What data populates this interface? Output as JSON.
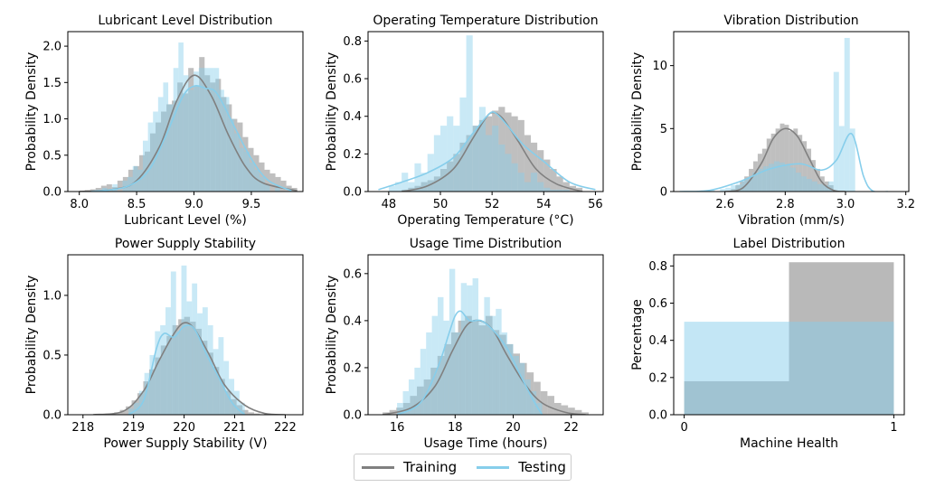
{
  "colors": {
    "training": "#808080",
    "testing": "#87CEEB",
    "axis": "#000000"
  },
  "legend": {
    "training_label": "Training",
    "testing_label": "Testing"
  },
  "chart_data": [
    {
      "type": "histogram+kde",
      "title": "Lubricant Level Distribution",
      "xlabel": "Lubricant Level (%)",
      "ylabel": "Probability Density",
      "xlim": [
        7.9,
        9.95
      ],
      "ylim": [
        0,
        2.2
      ],
      "xticks": [
        {
          "v": 8.0,
          "t": "8.0"
        },
        {
          "v": 8.5,
          "t": "8.5"
        },
        {
          "v": 9.0,
          "t": "9.0"
        },
        {
          "v": 9.5,
          "t": "9.5"
        }
      ],
      "yticks": [
        {
          "v": 0,
          "t": "0.0"
        },
        {
          "v": 0.5,
          "t": "0.5"
        },
        {
          "v": 1.0,
          "t": "1.0"
        },
        {
          "v": 1.5,
          "t": "1.5"
        },
        {
          "v": 2.0,
          "t": "2.0"
        }
      ],
      "train_hist": {
        "x0": 8.0,
        "x1": 9.9,
        "values": [
          0.01,
          0.02,
          0.03,
          0.05,
          0.08,
          0.1,
          0.06,
          0.15,
          0.2,
          0.3,
          0.35,
          0.5,
          0.55,
          0.8,
          0.95,
          1.1,
          1.2,
          1.25,
          1.5,
          1.35,
          1.7,
          1.45,
          1.85,
          1.6,
          1.5,
          1.55,
          1.3,
          1.2,
          1.0,
          0.95,
          0.75,
          0.6,
          0.5,
          0.4,
          0.3,
          0.25,
          0.2,
          0.15,
          0.08,
          0.05
        ]
      },
      "test_hist": {
        "x0": 8.2,
        "x1": 9.75,
        "values": [
          0.05,
          0,
          0.1,
          0,
          0.15,
          0.2,
          0.35,
          0.3,
          0.7,
          0.95,
          1.1,
          1.3,
          1.5,
          1.2,
          1.7,
          2.05,
          1.6,
          1.4,
          1.65,
          1.7,
          1.7,
          1.7,
          1.7,
          1.4,
          1.3,
          1.0,
          0.8,
          0.6,
          0.55,
          0.4,
          0.3,
          0.2,
          0.1,
          0,
          0.05
        ]
      },
      "train_kde": [
        [
          8.0,
          0
        ],
        [
          8.3,
          0.03
        ],
        [
          8.5,
          0.15
        ],
        [
          8.7,
          0.62
        ],
        [
          8.85,
          1.25
        ],
        [
          9.0,
          1.6
        ],
        [
          9.15,
          1.32
        ],
        [
          9.3,
          0.78
        ],
        [
          9.45,
          0.34
        ],
        [
          9.6,
          0.12
        ],
        [
          9.9,
          0.01
        ]
      ],
      "test_kde": [
        [
          8.1,
          0
        ],
        [
          8.4,
          0.06
        ],
        [
          8.6,
          0.28
        ],
        [
          8.75,
          0.75
        ],
        [
          8.9,
          1.3
        ],
        [
          9.0,
          1.45
        ],
        [
          9.1,
          1.42
        ],
        [
          9.2,
          1.35
        ],
        [
          9.35,
          0.9
        ],
        [
          9.5,
          0.45
        ],
        [
          9.65,
          0.15
        ],
        [
          9.85,
          0.01
        ]
      ]
    },
    {
      "type": "histogram+kde",
      "title": "Operating Temperature Distribution",
      "xlabel": "Operating Temperature (°C)",
      "ylabel": "Probability Density",
      "xlim": [
        47.2,
        56.3
      ],
      "ylim": [
        0,
        0.85
      ],
      "xticks": [
        {
          "v": 48,
          "t": "48"
        },
        {
          "v": 50,
          "t": "50"
        },
        {
          "v": 52,
          "t": "52"
        },
        {
          "v": 54,
          "t": "54"
        },
        {
          "v": 56,
          "t": "56"
        }
      ],
      "yticks": [
        {
          "v": 0,
          "t": "0.0"
        },
        {
          "v": 0.2,
          "t": "0.2"
        },
        {
          "v": 0.4,
          "t": "0.4"
        },
        {
          "v": 0.6,
          "t": "0.6"
        },
        {
          "v": 0.8,
          "t": "0.8"
        }
      ],
      "train_hist": {
        "x0": 48.5,
        "x1": 55.5,
        "values": [
          0.01,
          0.02,
          0.03,
          0.05,
          0.06,
          0.08,
          0.12,
          0.16,
          0.2,
          0.26,
          0.3,
          0.35,
          0.38,
          0.4,
          0.43,
          0.45,
          0.42,
          0.4,
          0.38,
          0.3,
          0.26,
          0.22,
          0.17,
          0.12,
          0.08,
          0.05,
          0.03,
          0.02
        ]
      },
      "test_hist": {
        "x0": 48,
        "x1": 55,
        "values": [
          0.03,
          0.05,
          0.1,
          0.05,
          0.15,
          0.1,
          0.2,
          0.3,
          0.35,
          0.4,
          0.35,
          0.5,
          0.83,
          0.35,
          0.45,
          0.3,
          0.35,
          0.25,
          0.2,
          0.15,
          0.1,
          0.05,
          0.1,
          0.05,
          0.02,
          0.01,
          0.01,
          0.01
        ]
      },
      "train_kde": [
        [
          48.5,
          0
        ],
        [
          49.5,
          0.03
        ],
        [
          50.5,
          0.12
        ],
        [
          51.2,
          0.27
        ],
        [
          51.7,
          0.38
        ],
        [
          52.0,
          0.42
        ],
        [
          52.4,
          0.39
        ],
        [
          53.0,
          0.27
        ],
        [
          53.7,
          0.12
        ],
        [
          54.5,
          0.04
        ],
        [
          55.5,
          0
        ]
      ],
      "test_kde": [
        [
          47.6,
          0.01
        ],
        [
          48.5,
          0.05
        ],
        [
          49.5,
          0.1
        ],
        [
          50.5,
          0.18
        ],
        [
          51.2,
          0.3
        ],
        [
          51.8,
          0.4
        ],
        [
          52.1,
          0.42
        ],
        [
          52.6,
          0.35
        ],
        [
          53.2,
          0.25
        ],
        [
          54.0,
          0.16
        ],
        [
          55.0,
          0.05
        ],
        [
          56.0,
          0.01
        ]
      ]
    },
    {
      "type": "histogram+kde",
      "title": "Vibration Distribution",
      "xlabel": "Vibration (mm/s)",
      "ylabel": "Probability Density",
      "xlim": [
        2.43,
        3.21
      ],
      "ylim": [
        0,
        12.7
      ],
      "xticks": [
        {
          "v": 2.6,
          "t": "2.6"
        },
        {
          "v": 2.8,
          "t": "2.8"
        },
        {
          "v": 3.0,
          "t": "3.0"
        },
        {
          "v": 3.2,
          "t": "3.2"
        }
      ],
      "yticks": [
        {
          "v": 0,
          "t": "0"
        },
        {
          "v": 5,
          "t": "5"
        },
        {
          "v": 10,
          "t": "10"
        }
      ],
      "train_hist": {
        "x0": 2.62,
        "x1": 2.96,
        "values": [
          0.2,
          0.5,
          0.8,
          1.2,
          1.8,
          2.4,
          3.0,
          3.4,
          4.2,
          4.6,
          5.0,
          5.4,
          5.3,
          4.8,
          5.0,
          4.5,
          4.0,
          3.4,
          2.5,
          1.8,
          1.2,
          0.8,
          0.5
        ]
      },
      "test_hist": {
        "x0": 2.53,
        "x1": 3.05,
        "values": [
          0.1,
          0.1,
          0,
          0.2,
          0.3,
          0.5,
          0.6,
          0.9,
          1.1,
          1.5,
          1.8,
          2.0,
          2.2,
          2.4,
          2.3,
          2.1,
          1.9,
          1.5,
          1.2,
          1.0,
          0.8,
          0.6,
          0.5,
          0.8,
          9.5,
          5.2,
          12.2,
          5.0,
          0
        ]
      },
      "train_kde": [
        [
          2.6,
          0
        ],
        [
          2.66,
          0.3
        ],
        [
          2.72,
          2.2
        ],
        [
          2.76,
          4.2
        ],
        [
          2.8,
          5.0
        ],
        [
          2.84,
          4.4
        ],
        [
          2.88,
          2.6
        ],
        [
          2.92,
          0.8
        ],
        [
          2.96,
          0.1
        ],
        [
          3.0,
          0
        ]
      ],
      "test_kde": [
        [
          2.45,
          0
        ],
        [
          2.55,
          0.1
        ],
        [
          2.65,
          0.8
        ],
        [
          2.75,
          1.8
        ],
        [
          2.85,
          2.2
        ],
        [
          2.92,
          1.7
        ],
        [
          2.97,
          2.5
        ],
        [
          3.02,
          4.6
        ],
        [
          3.06,
          1.2
        ],
        [
          3.09,
          0.05
        ],
        [
          3.14,
          0
        ]
      ]
    },
    {
      "type": "histogram+kde",
      "title": "Power Supply Stability",
      "xlabel": "Power Supply Stability (V)",
      "ylabel": "Probability Density",
      "xlim": [
        217.7,
        222.35
      ],
      "ylim": [
        0,
        1.34
      ],
      "xticks": [
        {
          "v": 218,
          "t": "218"
        },
        {
          "v": 219,
          "t": "219"
        },
        {
          "v": 220,
          "t": "220"
        },
        {
          "v": 221,
          "t": "221"
        },
        {
          "v": 222,
          "t": "222"
        }
      ],
      "yticks": [
        {
          "v": 0,
          "t": "0.0"
        },
        {
          "v": 0.5,
          "t": "0.5"
        },
        {
          "v": 1.0,
          "t": "1.0"
        }
      ],
      "train_hist": {
        "x0": 218.5,
        "x1": 221.5,
        "values": [
          0.01,
          0.02,
          0.04,
          0.07,
          0.12,
          0.18,
          0.28,
          0.38,
          0.48,
          0.58,
          0.66,
          0.75,
          0.8,
          0.82,
          0.78,
          0.72,
          0.62,
          0.52,
          0.4,
          0.3,
          0.2,
          0.13,
          0.08,
          0.04,
          0.02,
          0.01
        ]
      },
      "test_hist": {
        "x0": 218.9,
        "x1": 221.2,
        "values": [
          0.05,
          0.1,
          0.2,
          0.35,
          0.5,
          0.7,
          0.75,
          0.9,
          1.2,
          0.7,
          1.25,
          0.95,
          1.1,
          0.85,
          0.9,
          0.75,
          0.55,
          0.65,
          0.45,
          0.3,
          0.2,
          0.1
        ]
      },
      "train_kde": [
        [
          218.2,
          0
        ],
        [
          218.8,
          0.03
        ],
        [
          219.2,
          0.2
        ],
        [
          219.5,
          0.45
        ],
        [
          219.8,
          0.68
        ],
        [
          220.0,
          0.77
        ],
        [
          220.2,
          0.72
        ],
        [
          220.5,
          0.5
        ],
        [
          220.8,
          0.25
        ],
        [
          221.2,
          0.08
        ],
        [
          221.6,
          0.01
        ],
        [
          222.0,
          0
        ]
      ],
      "test_kde": [
        [
          218.9,
          0
        ],
        [
          219.2,
          0.12
        ],
        [
          219.45,
          0.55
        ],
        [
          219.6,
          0.68
        ],
        [
          219.8,
          0.65
        ],
        [
          220.0,
          0.74
        ],
        [
          220.2,
          0.72
        ],
        [
          220.45,
          0.5
        ],
        [
          220.7,
          0.3
        ],
        [
          220.95,
          0.1
        ],
        [
          221.2,
          0
        ]
      ]
    },
    {
      "type": "histogram+kde",
      "title": "Usage Time Distribution",
      "xlabel": "Usage Time (hours)",
      "ylabel": "Probability Density",
      "xlim": [
        15.0,
        23.1
      ],
      "ylim": [
        0,
        0.68
      ],
      "xticks": [
        {
          "v": 16,
          "t": "16"
        },
        {
          "v": 18,
          "t": "18"
        },
        {
          "v": 20,
          "t": "20"
        },
        {
          "v": 22,
          "t": "22"
        }
      ],
      "yticks": [
        {
          "v": 0,
          "t": "0.0"
        },
        {
          "v": 0.2,
          "t": "0.2"
        },
        {
          "v": 0.4,
          "t": "0.4"
        },
        {
          "v": 0.6,
          "t": "0.6"
        }
      ],
      "train_hist": {
        "x0": 15.5,
        "x1": 22.6,
        "values": [
          0.01,
          0.02,
          0.03,
          0.05,
          0.08,
          0.12,
          0.15,
          0.2,
          0.25,
          0.3,
          0.35,
          0.4,
          0.42,
          0.4,
          0.38,
          0.42,
          0.36,
          0.34,
          0.3,
          0.26,
          0.22,
          0.18,
          0.14,
          0.1,
          0.08,
          0.05,
          0.04,
          0.03,
          0.02,
          0.01
        ]
      },
      "test_hist": {
        "x0": 16.0,
        "x1": 21.0,
        "values": [
          0.05,
          0.1,
          0.15,
          0.2,
          0.28,
          0.35,
          0.42,
          0.5,
          0.4,
          0.62,
          0.35,
          0.56,
          0.55,
          0.58,
          0.4,
          0.5,
          0.42,
          0.45,
          0.35,
          0.3,
          0.25,
          0.22,
          0.15,
          0.1,
          0.05
        ]
      },
      "train_kde": [
        [
          15.5,
          0
        ],
        [
          16.5,
          0.03
        ],
        [
          17.3,
          0.12
        ],
        [
          17.9,
          0.27
        ],
        [
          18.4,
          0.38
        ],
        [
          18.85,
          0.4
        ],
        [
          19.3,
          0.36
        ],
        [
          19.8,
          0.25
        ],
        [
          20.4,
          0.13
        ],
        [
          21.0,
          0.05
        ],
        [
          21.8,
          0.01
        ],
        [
          22.5,
          0
        ]
      ],
      "test_kde": [
        [
          16.0,
          0
        ],
        [
          16.8,
          0.05
        ],
        [
          17.4,
          0.2
        ],
        [
          17.8,
          0.35
        ],
        [
          18.0,
          0.42
        ],
        [
          18.2,
          0.44
        ],
        [
          18.5,
          0.4
        ],
        [
          18.9,
          0.4
        ],
        [
          19.3,
          0.36
        ],
        [
          19.8,
          0.28
        ],
        [
          20.2,
          0.18
        ],
        [
          20.7,
          0.06
        ],
        [
          21.0,
          0
        ]
      ]
    },
    {
      "type": "bar",
      "title": "Label Distribution",
      "xlabel": "Machine Health",
      "ylabel": "Percentage",
      "xlim": [
        -0.05,
        1.05
      ],
      "ylim": [
        0,
        0.86
      ],
      "xticks": [
        {
          "v": 0,
          "t": "0"
        },
        {
          "v": 1,
          "t": "1"
        }
      ],
      "yticks": [
        {
          "v": 0,
          "t": "0.0"
        },
        {
          "v": 0.2,
          "t": "0.2"
        },
        {
          "v": 0.4,
          "t": "0.4"
        },
        {
          "v": 0.6,
          "t": "0.6"
        },
        {
          "v": 0.8,
          "t": "0.8"
        }
      ],
      "categories": [
        "0",
        "1"
      ],
      "series": [
        {
          "name": "Training",
          "values": [
            0.18,
            0.82
          ]
        },
        {
          "name": "Testing",
          "values": [
            0.5,
            0.5
          ]
        }
      ]
    }
  ]
}
